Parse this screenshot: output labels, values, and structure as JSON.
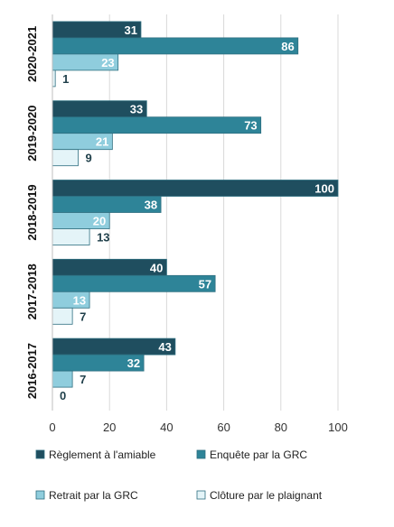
{
  "chart_data": {
    "type": "bar",
    "orientation": "horizontal",
    "categories": [
      "2020-2021",
      "2019-2020",
      "2018-2019",
      "2017-2018",
      "2016-2017"
    ],
    "series": [
      {
        "name": "Règlement à l'amiable",
        "color": "#1f4e5f",
        "label_color": "#ffffff",
        "label_inside": true,
        "values": [
          31,
          33,
          100,
          40,
          43
        ]
      },
      {
        "name": "Enquête par la GRC",
        "color": "#2e8498",
        "label_color": "#ffffff",
        "label_inside": true,
        "values": [
          86,
          73,
          38,
          57,
          32
        ]
      },
      {
        "name": "Retrait par la GRC",
        "color": "#8fcddd",
        "label_color": "#ffffff",
        "label_inside": true,
        "values": [
          23,
          21,
          20,
          13,
          7
        ]
      },
      {
        "name": "Clôture par le plaignant",
        "color": "#e4f4f8",
        "label_color": "#1f3f4a",
        "label_inside": false,
        "values": [
          1,
          9,
          13,
          7,
          0
        ]
      }
    ],
    "xlim": [
      0,
      100
    ],
    "xticks": [
      0,
      20,
      40,
      60,
      80,
      100
    ],
    "grid": true,
    "legend_position": "bottom",
    "title": "",
    "xlabel": "",
    "ylabel": ""
  }
}
